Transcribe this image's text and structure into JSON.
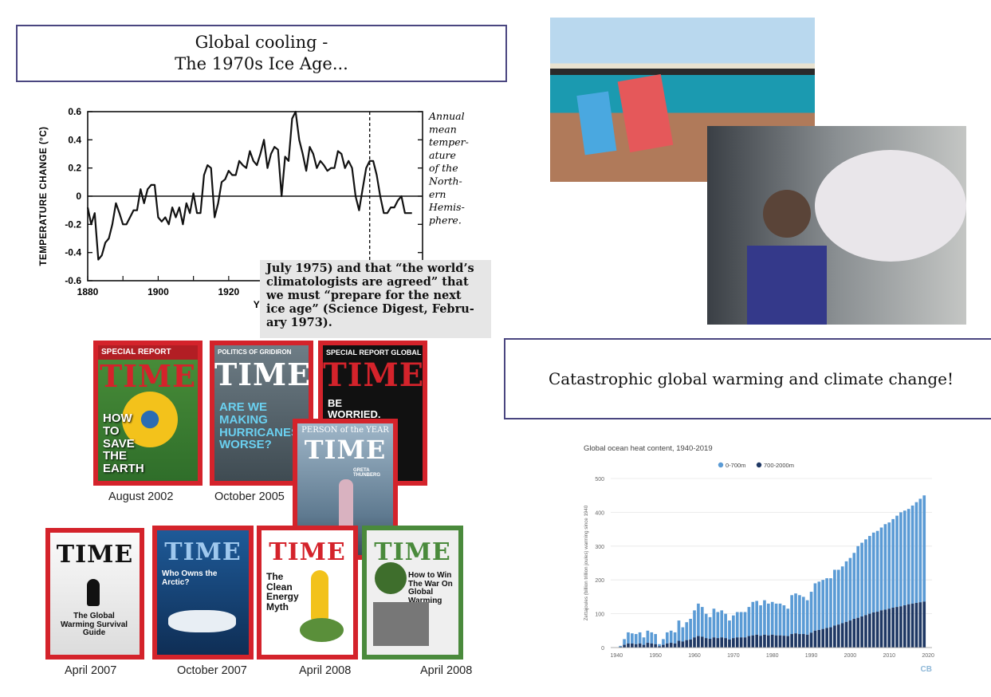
{
  "slide": {
    "title_left": [
      "Global cooling -",
      "The 1970s Ice Age..."
    ],
    "title_right": "Catastrophic global warming and climate change!",
    "quote_lines": [
      "July 1975) and that “the world’s",
      "climatologists are agreed” that",
      "we must “prepare for the next",
      "ice age” (Science Digest, Febru-",
      "ary 1973)."
    ]
  },
  "covers": [
    {
      "banner": "SPECIAL REPORT",
      "masthead": "TIME",
      "headline": "HOW TO SAVE THE EARTH",
      "date": "August 2002",
      "border": "#d4232b",
      "bg": "#2f6e2a"
    },
    {
      "banner": "POLITICS OF GRIDIRON",
      "masthead": "TIME",
      "headline": "ARE WE MAKING HURRICANES WORSE?",
      "date": "October 2005",
      "border": "#d4232b",
      "bg": "#5c6a72"
    },
    {
      "banner": "SPECIAL REPORT GLOBAL WARMING",
      "masthead": "TIME",
      "headline": "BE WORRIED. BE VERY WORRIED.",
      "date": "",
      "border": "#d4232b",
      "bg": "#101010"
    },
    {
      "banner": "",
      "masthead": "TIME",
      "headline": "The Global Warming Survival Guide",
      "date": "April 2007",
      "border": "#d4232b",
      "bg": "#f2f2f2"
    },
    {
      "banner": "",
      "masthead": "TIME",
      "headline": "Who Owns the Arctic?",
      "date": "October 2007",
      "border": "#d4232b",
      "bg": "#1e5a98"
    },
    {
      "banner": "",
      "masthead": "TIME",
      "headline": "The Clean Energy Myth",
      "date": "April 2008",
      "border": "#d4232b",
      "bg": "#ffffff"
    },
    {
      "banner": "",
      "masthead": "TIME",
      "headline": "How to Win The War On Global Warming",
      "date": "April 2008",
      "border": "#4a8a3c",
      "bg": "#efefef"
    },
    {
      "banner": "PERSON of the YEAR",
      "masthead": "TIME",
      "headline": "GRETA THUNBERG",
      "date": "",
      "border": "#d4232b",
      "bg": "#8aa3b8"
    }
  ],
  "chart_data": [
    {
      "type": "line",
      "title": "",
      "xlabel": "YEA",
      "ylabel": "TEMPERATURE CHANGE (°C)",
      "xlim": [
        1880,
        1975
      ],
      "ylim": [
        -0.6,
        0.6
      ],
      "xticks": [
        "1880",
        "1900",
        "1920"
      ],
      "yticks": [
        "0.6",
        "0.4",
        "0.2",
        "0",
        "-0.2",
        "-0.4",
        "-0.6"
      ],
      "annotation": [
        "Annual",
        "mean",
        "temper-",
        "ature",
        "of the",
        "North-",
        "ern",
        "Hemis-",
        "phere."
      ],
      "dashed_marker_x": 1960,
      "series": [
        {
          "x": [
            1880,
            1881,
            1882,
            1883,
            1884,
            1885,
            1886,
            1887,
            1888,
            1889,
            1890,
            1891,
            1892,
            1893,
            1894,
            1895,
            1896,
            1897,
            1898,
            1899,
            1900,
            1901,
            1902,
            1903,
            1904,
            1905,
            1906,
            1907,
            1908,
            1909,
            1910,
            1911,
            1912,
            1913,
            1914,
            1915,
            1916,
            1917,
            1918,
            1919,
            1920,
            1921,
            1922,
            1923,
            1924,
            1925,
            1926,
            1927,
            1928,
            1929,
            1930,
            1931,
            1932,
            1933,
            1934,
            1935,
            1936,
            1937,
            1938,
            1939,
            1940,
            1941,
            1942,
            1943,
            1944,
            1945,
            1946,
            1947,
            1948,
            1949,
            1950,
            1951,
            1952,
            1953,
            1954,
            1955,
            1956,
            1957,
            1958,
            1959,
            1960,
            1961,
            1962,
            1963,
            1964,
            1965,
            1966,
            1967,
            1968,
            1969,
            1970,
            1971,
            1972
          ],
          "y": [
            -0.08,
            -0.2,
            -0.12,
            -0.45,
            -0.42,
            -0.33,
            -0.3,
            -0.2,
            -0.05,
            -0.12,
            -0.2,
            -0.2,
            -0.15,
            -0.1,
            -0.1,
            0.05,
            -0.05,
            0.05,
            0.08,
            0.08,
            -0.15,
            -0.18,
            -0.15,
            -0.2,
            -0.08,
            -0.15,
            -0.08,
            -0.2,
            -0.05,
            -0.12,
            0.02,
            -0.12,
            -0.12,
            0.15,
            0.22,
            0.2,
            -0.15,
            -0.05,
            0.1,
            0.12,
            0.18,
            0.15,
            0.15,
            0.25,
            0.22,
            0.2,
            0.32,
            0.25,
            0.22,
            0.3,
            0.4,
            0.2,
            0.3,
            0.35,
            0.33,
            0.0,
            0.28,
            0.25,
            0.55,
            0.6,
            0.4,
            0.3,
            0.18,
            0.35,
            0.3,
            0.2,
            0.25,
            0.22,
            0.18,
            0.2,
            0.2,
            0.32,
            0.3,
            0.2,
            0.25,
            0.2,
            0.0,
            -0.1,
            0.05,
            0.2,
            0.25,
            0.25,
            0.15,
            0.0,
            -0.12,
            -0.12,
            -0.08,
            -0.08,
            -0.03,
            0.0,
            -0.12,
            -0.12,
            -0.12
          ]
        }
      ]
    },
    {
      "type": "bar",
      "title": "Global ocean heat content, 1940-2019",
      "ylabel": "Zettajoules (billion trillion joules) warming since 1940",
      "ylim": [
        0,
        500
      ],
      "yticks": [
        "0",
        "100",
        "200",
        "300",
        "400",
        "500"
      ],
      "xticks": [
        "1940",
        "1950",
        "1960",
        "1970",
        "1980",
        "1990",
        "2000",
        "2010",
        "2020"
      ],
      "legend_position": "top-center",
      "watermark": "CB",
      "categories": [
        1940,
        1941,
        1942,
        1943,
        1944,
        1945,
        1946,
        1947,
        1948,
        1949,
        1950,
        1951,
        1952,
        1953,
        1954,
        1955,
        1956,
        1957,
        1958,
        1959,
        1960,
        1961,
        1962,
        1963,
        1964,
        1965,
        1966,
        1967,
        1968,
        1969,
        1970,
        1971,
        1972,
        1973,
        1974,
        1975,
        1976,
        1977,
        1978,
        1979,
        1980,
        1981,
        1982,
        1983,
        1984,
        1985,
        1986,
        1987,
        1988,
        1989,
        1990,
        1991,
        1992,
        1993,
        1994,
        1995,
        1996,
        1997,
        1998,
        1999,
        2000,
        2001,
        2002,
        2003,
        2004,
        2005,
        2006,
        2007,
        2008,
        2009,
        2010,
        2011,
        2012,
        2013,
        2014,
        2015,
        2016,
        2017,
        2018,
        2019
      ],
      "series": [
        {
          "name": "0-700m",
          "color": "#5b9bd5",
          "values": [
            0,
            5,
            25,
            45,
            42,
            40,
            45,
            30,
            50,
            45,
            40,
            10,
            25,
            45,
            50,
            45,
            80,
            60,
            75,
            85,
            110,
            130,
            120,
            100,
            90,
            115,
            105,
            110,
            100,
            80,
            95,
            105,
            105,
            105,
            120,
            135,
            138,
            125,
            140,
            130,
            135,
            130,
            130,
            125,
            115,
            155,
            160,
            155,
            150,
            140,
            165,
            190,
            195,
            200,
            205,
            205,
            230,
            230,
            240,
            255,
            265,
            280,
            300,
            310,
            320,
            330,
            340,
            345,
            355,
            365,
            370,
            380,
            390,
            400,
            405,
            410,
            420,
            430,
            440,
            450
          ]
        },
        {
          "name": "700-2000m",
          "color": "#1f3864",
          "values": [
            0,
            2,
            8,
            12,
            12,
            10,
            12,
            8,
            14,
            12,
            10,
            4,
            8,
            12,
            14,
            12,
            20,
            18,
            22,
            24,
            30,
            34,
            32,
            28,
            26,
            30,
            28,
            30,
            28,
            24,
            28,
            30,
            30,
            30,
            34,
            36,
            38,
            35,
            38,
            36,
            38,
            36,
            36,
            35,
            34,
            40,
            42,
            40,
            40,
            38,
            44,
            50,
            52,
            55,
            58,
            60,
            65,
            68,
            72,
            76,
            80,
            85,
            88,
            92,
            96,
            100,
            104,
            106,
            110,
            112,
            115,
            118,
            120,
            122,
            125,
            128,
            130,
            132,
            134,
            136
          ]
        }
      ]
    }
  ]
}
